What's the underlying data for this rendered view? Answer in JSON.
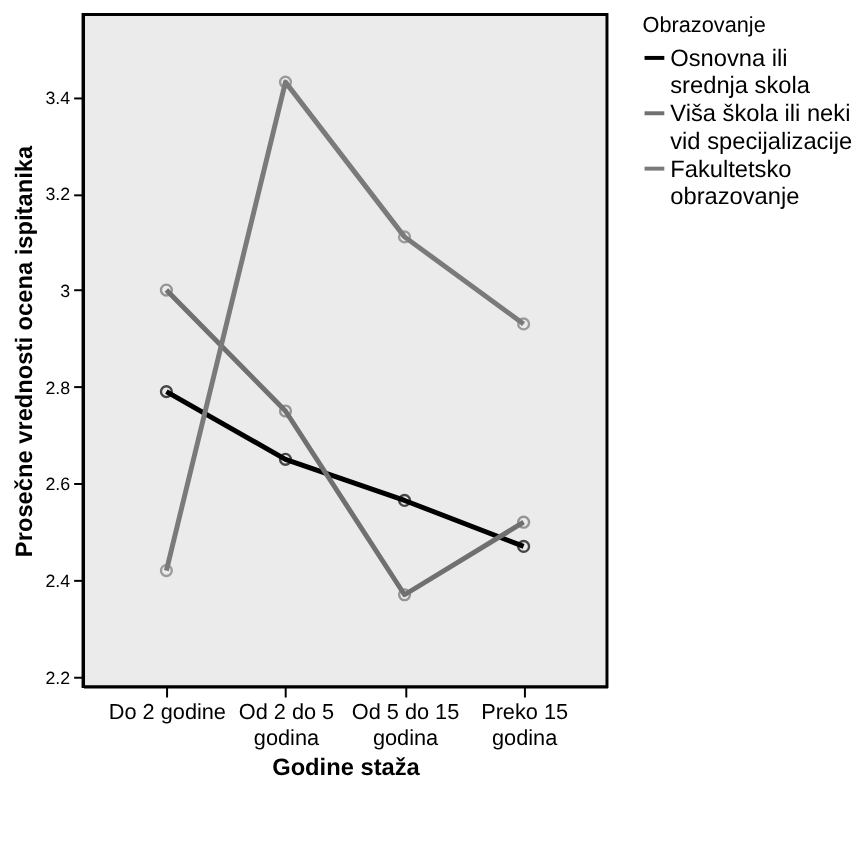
{
  "chart_data": {
    "type": "line",
    "xlabel": "Godine staža",
    "ylabel": "Prosečne vrednosti ocena ispitanika",
    "legend_title": "Obrazovanje",
    "categories": [
      "Do 2 godine",
      "Od 2 do 5\ngodina",
      "Od 5 do 15\ngodina",
      "Preko 15\ngodina"
    ],
    "series": [
      {
        "name": "Osnovna ili\nsrednja skola",
        "color": "#000000",
        "values": [
          2.79,
          2.65,
          2.565,
          2.47
        ]
      },
      {
        "name": "Viša škola ili neki\nvid specijalizacije",
        "color": "#707070",
        "values": [
          3.0,
          2.75,
          2.37,
          2.52
        ]
      },
      {
        "name": "Fakultetsko\nobrazovanje",
        "color": "#7a7a7a",
        "values": [
          2.42,
          3.43,
          3.11,
          2.93
        ]
      }
    ],
    "ylim": [
      2.18,
      3.57
    ],
    "yticks": [
      {
        "value": 2.2,
        "label": "2.2"
      },
      {
        "value": 2.4,
        "label": "2.4"
      },
      {
        "value": 2.6,
        "label": "2.6"
      },
      {
        "value": 2.8,
        "label": "2.8"
      },
      3,
      {
        "value": 3.2,
        "label": "3.2"
      },
      {
        "value": 3.4,
        "label": "3.4"
      }
    ],
    "marker": "circle",
    "line_style": "solid",
    "grid": false,
    "legend": "right"
  }
}
